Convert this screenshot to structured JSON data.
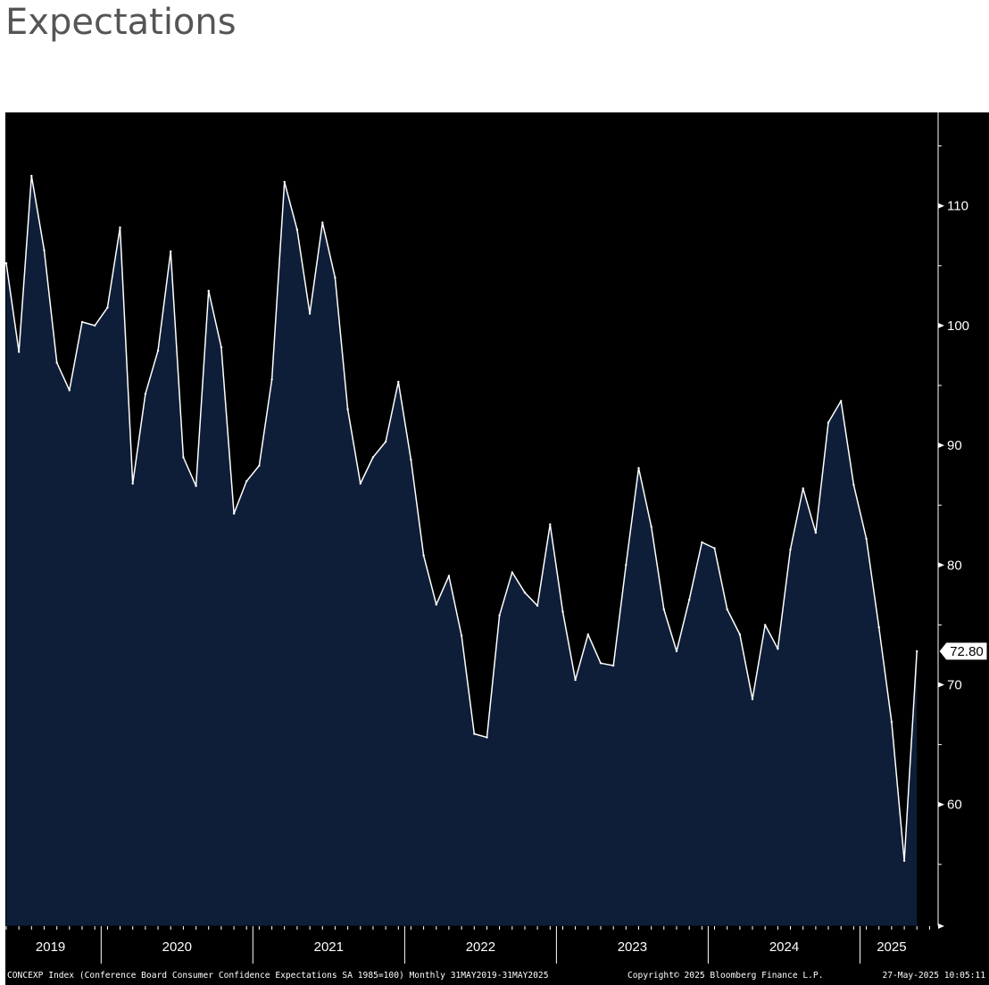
{
  "page": {
    "title": "Expectations"
  },
  "footer": {
    "source": "CONCEXP Index (Conference Board Consumer Confidence Expectations SA 1985=100)  Monthly 31MAY2019-31MAY2025",
    "copyright": "Copyright© 2025 Bloomberg Finance L.P.",
    "timestamp": "27-May-2025 10:05:11"
  },
  "chart_data": {
    "type": "area",
    "title": "",
    "xlabel": "",
    "ylabel": "",
    "ylim": [
      50,
      118
    ],
    "y_ticks": [
      60,
      70,
      80,
      90,
      100,
      110
    ],
    "y_axis_side": "right",
    "grid": false,
    "legend": "none",
    "year_labels": [
      "2019",
      "2020",
      "2021",
      "2022",
      "2023",
      "2024",
      "2025"
    ],
    "last_value_label": "72.80",
    "colors": {
      "background": "#000000",
      "area_fill": "#0e1e38",
      "line": "#ffffff",
      "text": "#ffffff"
    },
    "series": [
      {
        "dates": [
          "2019-05",
          "2019-06",
          "2019-07",
          "2019-08",
          "2019-09",
          "2019-10",
          "2019-11",
          "2019-12",
          "2020-01",
          "2020-02",
          "2020-03",
          "2020-04",
          "2020-05",
          "2020-06",
          "2020-07",
          "2020-08",
          "2020-09",
          "2020-10",
          "2020-11",
          "2020-12",
          "2021-01",
          "2021-02",
          "2021-03",
          "2021-04",
          "2021-05",
          "2021-06",
          "2021-07",
          "2021-08",
          "2021-09",
          "2021-10",
          "2021-11",
          "2021-12",
          "2022-01",
          "2022-02",
          "2022-03",
          "2022-04",
          "2022-05",
          "2022-06",
          "2022-07",
          "2022-08",
          "2022-09",
          "2022-10",
          "2022-11",
          "2022-12",
          "2023-01",
          "2023-02",
          "2023-03",
          "2023-04",
          "2023-05",
          "2023-06",
          "2023-07",
          "2023-08",
          "2023-09",
          "2023-10",
          "2023-11",
          "2023-12",
          "2024-01",
          "2024-02",
          "2024-03",
          "2024-04",
          "2024-05",
          "2024-06",
          "2024-07",
          "2024-08",
          "2024-09",
          "2024-10",
          "2024-11",
          "2024-12",
          "2025-01",
          "2025-02",
          "2025-03",
          "2025-04",
          "2025-05"
        ],
        "values": [
          105.2,
          97.8,
          112.5,
          106.3,
          96.9,
          94.6,
          100.3,
          100.0,
          101.5,
          108.2,
          86.8,
          94.3,
          97.9,
          106.2,
          89.0,
          86.6,
          102.9,
          98.2,
          84.3,
          87.0,
          88.3,
          95.5,
          112.0,
          108.0,
          101.0,
          108.6,
          104.0,
          93.0,
          86.8,
          89.0,
          90.3,
          95.3,
          88.8,
          80.8,
          76.7,
          79.1,
          74.1,
          65.9,
          65.6,
          75.8,
          79.4,
          77.7,
          76.6,
          83.4,
          76.1,
          70.4,
          74.2,
          71.8,
          71.6,
          80.0,
          88.1,
          83.2,
          76.3,
          72.8,
          77.1,
          81.9,
          81.4,
          76.3,
          74.2,
          68.8,
          75.0,
          73.0,
          81.3,
          86.4,
          82.7,
          91.9,
          93.7,
          86.7,
          82.2,
          74.8,
          66.9,
          55.3,
          72.8
        ]
      }
    ]
  }
}
